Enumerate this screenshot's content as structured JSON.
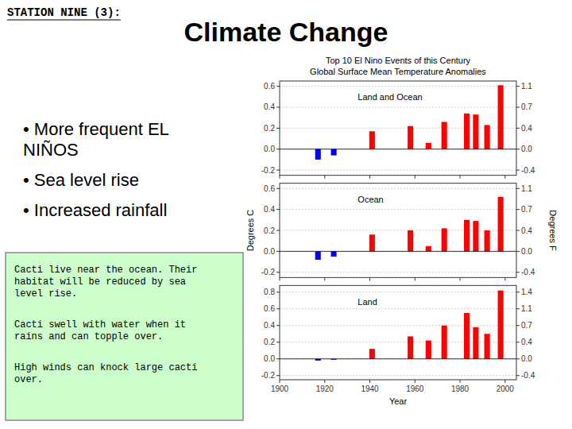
{
  "title": "Climate Change",
  "annotations": [
    "STATION NINE (3):",
    "•  More frequent EL\nNIÑOS",
    "•  Sea level rise",
    "•  Increased rainfall",
    "Cacti live near the ocean.  Their\nhabitat will be reduced by sea\nlevel rise.",
    "Cacti swell with water when it\nrains and can topple over.",
    "High winds can knock large cacti\nover."
  ],
  "chart_data": [
    {
      "type": "bar",
      "title": "Top 10 El Nino Events of this Century",
      "subtitle": "Global Surface Mean Temperature Anomalies",
      "x": [
        1917,
        1924,
        1941,
        1958,
        1966,
        1973,
        1983,
        1987,
        1992,
        1998
      ],
      "values": [
        -0.1,
        -0.06,
        0.17,
        0.22,
        0.06,
        0.26,
        0.34,
        0.33,
        0.23,
        0.61
      ],
      "colors": [
        "blue",
        "blue",
        "red",
        "red",
        "red",
        "red",
        "red",
        "red",
        "red",
        "red"
      ],
      "xlim": [
        1900,
        2005
      ],
      "xticks": [
        1900,
        1920,
        1940,
        1960,
        1980,
        2000
      ],
      "ylim": [
        -0.25,
        0.65
      ],
      "yticks": [
        -0.2,
        {
          "value": 0,
          "label": "0.0"
        },
        0.2,
        0.4,
        0.6
      ],
      "y2lim": [
        -0.45,
        1.17
      ],
      "y2ticks": [
        {
          "value": -0.36,
          "label": "-0.4"
        },
        {
          "value": 0,
          "label": "0.0"
        },
        {
          "value": 0.36,
          "label": "0.4"
        },
        {
          "value": 0.72,
          "label": "0.7"
        },
        {
          "value": 1.08,
          "label": "1.1"
        }
      ],
      "grid": true,
      "tick_labels": "y",
      "annotations": [
        "Land and Ocean"
      ]
    },
    {
      "type": "bar",
      "ylabel": "Degrees C",
      "y2label": "Degrees F",
      "x": [
        1917,
        1924,
        1941,
        1958,
        1966,
        1973,
        1983,
        1987,
        1992,
        1998
      ],
      "values": [
        -0.08,
        -0.05,
        0.16,
        0.2,
        0.05,
        0.22,
        0.3,
        0.29,
        0.2,
        0.52
      ],
      "colors": [
        "blue",
        "blue",
        "red",
        "red",
        "red",
        "red",
        "red",
        "red",
        "red",
        "red"
      ],
      "xlim": [
        1900,
        2005
      ],
      "xticks": [
        1900,
        1920,
        1940,
        1960,
        1980,
        2000
      ],
      "ylim": [
        -0.25,
        0.65
      ],
      "yticks": [
        -0.2,
        {
          "value": 0,
          "label": "0.0"
        },
        0.2,
        0.4,
        0.6
      ],
      "y2lim": [
        -0.45,
        1.17
      ],
      "y2ticks": [
        {
          "value": -0.36,
          "label": "-0.4"
        },
        {
          "value": 0,
          "label": "0.0"
        },
        {
          "value": 0.36,
          "label": "0.4"
        },
        {
          "value": 0.72,
          "label": "0.7"
        },
        {
          "value": 1.08,
          "label": "1.1"
        }
      ],
      "grid": true,
      "tick_labels": "y",
      "annotations": [
        "Ocean"
      ]
    },
    {
      "type": "bar",
      "xlabel": "Year",
      "x": [
        1917,
        1924,
        1941,
        1958,
        1966,
        1973,
        1983,
        1987,
        1992,
        1998
      ],
      "values": [
        -0.02,
        -0.01,
        0.12,
        0.27,
        0.22,
        0.4,
        0.55,
        0.38,
        0.3,
        0.82
      ],
      "colors": [
        "blue",
        "blue",
        "red",
        "red",
        "red",
        "red",
        "red",
        "red",
        "red",
        "red"
      ],
      "xlim": [
        1900,
        2005
      ],
      "xticks": [
        1900,
        1920,
        1940,
        1960,
        1980,
        2000
      ],
      "ylim": [
        -0.25,
        0.88
      ],
      "yticks": [
        -0.2,
        {
          "value": 0,
          "label": "0.0"
        },
        0.2,
        0.4,
        0.6,
        0.8
      ],
      "y2lim": [
        -0.45,
        1.584
      ],
      "y2ticks": [
        {
          "value": -0.36,
          "label": "-0.4"
        },
        {
          "value": 0,
          "label": "0.0"
        },
        {
          "value": 0.36,
          "label": "0.4"
        },
        {
          "value": 0.72,
          "label": "0.7"
        },
        {
          "value": 1.08,
          "label": "1.1"
        },
        {
          "value": 1.44,
          "label": "1.4"
        }
      ],
      "grid": true,
      "annotations": [
        "Land"
      ]
    }
  ]
}
